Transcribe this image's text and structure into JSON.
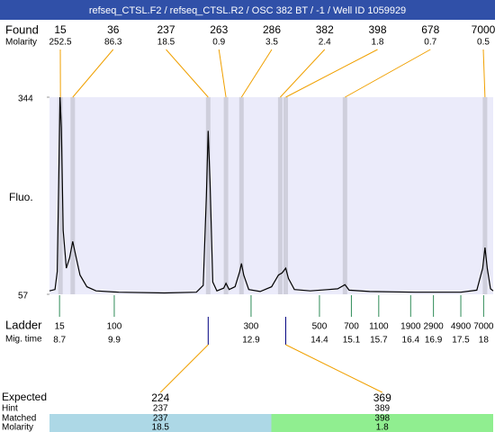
{
  "title": "refseq_CTSL.F2 / refseq_CTSL.R2 / OSC 382 BT / -1 / Well ID 1059929",
  "found": {
    "label": "Found",
    "molarity_label": "Molarity",
    "sizes": [
      15,
      36,
      237,
      263,
      286,
      382,
      398,
      678,
      7000
    ],
    "molarities": [
      252.5,
      86.3,
      18.5,
      0.9,
      3.5,
      2.4,
      1.8,
      0.7,
      0.5
    ],
    "times": [
      8.72,
      8.99,
      11.96,
      12.35,
      12.69,
      13.54,
      13.66,
      14.96,
      18.03
    ]
  },
  "chart_data": {
    "type": "line",
    "y_label": "Fluo.",
    "color": "#000000",
    "x": [
      8.48,
      8.6,
      8.65,
      8.69,
      8.71,
      8.74,
      8.78,
      8.85,
      8.92,
      8.99,
      9.05,
      9.15,
      9.3,
      9.5,
      10,
      11,
      11.7,
      11.85,
      11.92,
      11.96,
      12.0,
      12.06,
      12.15,
      12.3,
      12.35,
      12.42,
      12.55,
      12.65,
      12.69,
      12.74,
      12.85,
      13.1,
      13.35,
      13.5,
      13.58,
      13.66,
      13.72,
      13.85,
      14.2,
      14.6,
      14.8,
      14.96,
      15.05,
      15.5,
      16.5,
      17.5,
      17.85,
      17.98,
      18.03,
      18.08,
      18.15,
      18.21
    ],
    "values": [
      62,
      64,
      90,
      250,
      344,
      300,
      150,
      95,
      110,
      134,
      115,
      85,
      68,
      62,
      60,
      59,
      60,
      70,
      200,
      295,
      220,
      75,
      62,
      66,
      73,
      64,
      68,
      90,
      102,
      85,
      64,
      61,
      68,
      85,
      88,
      95,
      80,
      64,
      62,
      64,
      65,
      71,
      63,
      61,
      60,
      60,
      63,
      95,
      125,
      95,
      65,
      62
    ],
    "xlim": [
      8.48,
      18.21
    ],
    "ylim": [
      57,
      344
    ],
    "yticks": [
      57,
      344
    ]
  },
  "ladder": {
    "label": "Ladder",
    "time_label": "Mig. time",
    "sizes": [
      15,
      100,
      300,
      500,
      700,
      1100,
      1900,
      2900,
      4900,
      7000
    ],
    "times": [
      8.7,
      9.9,
      12.9,
      14.4,
      15.1,
      15.7,
      16.4,
      16.9,
      17.5,
      18
    ]
  },
  "expected": {
    "labels": [
      "Expected",
      "Hint",
      "Matched",
      "Molarity"
    ],
    "items": [
      {
        "expected": 224,
        "hint": 237,
        "matched": 237,
        "molarity": 18.5,
        "color": "#add8e6"
      },
      {
        "expected": 369,
        "hint": 389,
        "matched": 398,
        "molarity": 1.8,
        "color": "#90ee90"
      }
    ]
  }
}
